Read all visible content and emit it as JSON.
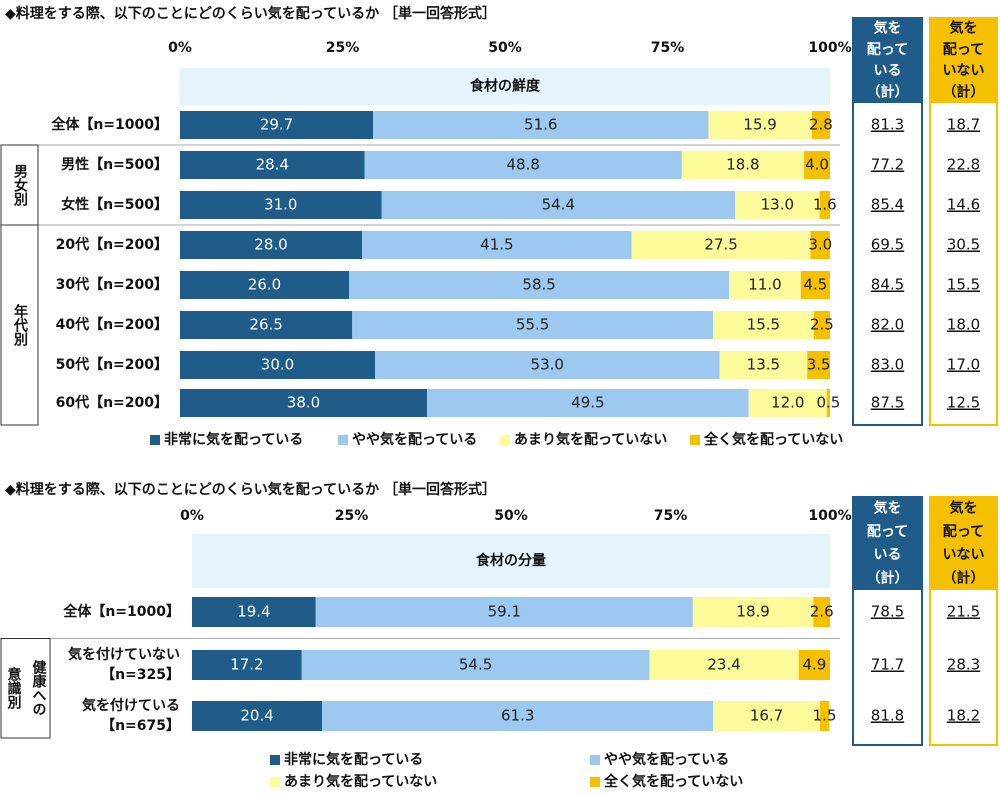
{
  "chart_data": [
    {
      "type": "stacked-bar",
      "title": "◆料理をする際、以下のことにどのくらい気を配っているか ［単一回答形式］",
      "subtitle": "食材の鮮度",
      "categories": [
        "全体【n=1000】",
        "男性【n=500】",
        "女性【n=500】",
        "20代【n=200】",
        "30代【n=200】",
        "40代【n=200】",
        "50代【n=200】",
        "60代【n=200】"
      ],
      "groups": [
        {
          "label": [
            "男女別"
          ],
          "rows": [
            1,
            2
          ]
        },
        {
          "label": [
            "年代別"
          ],
          "rows": [
            3,
            7
          ]
        }
      ],
      "xlim": [
        0,
        100
      ],
      "xticks": [
        {
          "value": 0,
          "label": "0%"
        },
        {
          "value": 25,
          "label": "25%"
        },
        {
          "value": 50,
          "label": "50%"
        },
        {
          "value": 75,
          "label": "75%"
        },
        {
          "value": 100,
          "label": "100%"
        }
      ],
      "series": [
        {
          "name": "非常に気を配っている",
          "color": "#1f5c8a",
          "values": [
            29.7,
            28.4,
            31.0,
            28.0,
            26.0,
            26.5,
            30.0,
            38.0
          ],
          "value_labels": [
            "29.7",
            "28.4",
            "31.0",
            "28.0",
            "26.0",
            "26.5",
            "30.0",
            "38.0"
          ]
        },
        {
          "name": "やや気を配っている",
          "color": "#9dc8ef",
          "values": [
            51.6,
            48.8,
            54.4,
            41.5,
            58.5,
            55.5,
            53.0,
            49.5
          ],
          "value_labels": [
            "51.6",
            "48.8",
            "54.4",
            "41.5",
            "58.5",
            "55.5",
            "53.0",
            "49.5"
          ]
        },
        {
          "name": "あまり気を配っていない",
          "color": "#fdfa9a",
          "values": [
            15.9,
            18.8,
            13.0,
            27.5,
            11.0,
            15.5,
            13.5,
            12.0
          ],
          "value_labels": [
            "15.9",
            "18.8",
            "13.0",
            "27.5",
            "11.0",
            "15.5",
            "13.5",
            "12.0"
          ]
        },
        {
          "name": "全く気を配っていない",
          "color": "#f5c000",
          "values": [
            2.8,
            4.0,
            1.6,
            3.0,
            4.5,
            2.5,
            3.5,
            0.5
          ],
          "value_labels": [
            "2.8",
            "4.0",
            "1.6",
            "3.0",
            "4.5",
            "2.5",
            "3.5",
            "0.5"
          ]
        }
      ],
      "summaries": [
        {
          "header": [
            "気を",
            "配って",
            "いる",
            "（計）"
          ],
          "color": "#1f5c8a",
          "values": [
            "81.3",
            "77.2",
            "85.4",
            "69.5",
            "84.5",
            "82.0",
            "83.0",
            "87.5"
          ]
        },
        {
          "header": [
            "気を",
            "配って",
            "いない",
            "（計）"
          ],
          "color": "#f5c000",
          "values": [
            "18.7",
            "22.8",
            "14.6",
            "30.5",
            "15.5",
            "18.0",
            "17.0",
            "12.5"
          ]
        }
      ]
    },
    {
      "type": "stacked-bar",
      "title": "◆料理をする際、以下のことにどのくらい気を配っているか ［単一回答形式］",
      "subtitle": "食材の分量",
      "categories": [
        [
          "全体【n=1000】"
        ],
        [
          "気を付けていない",
          "【n=325】"
        ],
        [
          "気を付けている",
          "【n=675】"
        ]
      ],
      "groups": [
        {
          "label": [
            "健康への",
            "意識別"
          ],
          "rows": [
            1,
            2
          ]
        }
      ],
      "xlim": [
        0,
        100
      ],
      "xticks": [
        {
          "value": 0,
          "label": "0%"
        },
        {
          "value": 25,
          "label": "25%"
        },
        {
          "value": 50,
          "label": "50%"
        },
        {
          "value": 75,
          "label": "75%"
        },
        {
          "value": 100,
          "label": "100%"
        }
      ],
      "series": [
        {
          "name": "非常に気を配っている",
          "color": "#1f5c8a",
          "values": [
            19.4,
            17.2,
            20.4
          ]
        },
        {
          "name": "やや気を配っている",
          "color": "#9dc8ef",
          "values": [
            59.1,
            54.5,
            61.3
          ]
        },
        {
          "name": "あまり気を配っていない",
          "color": "#fdfa9a",
          "values": [
            18.9,
            23.4,
            16.7
          ]
        },
        {
          "name": "全く気を配っていない",
          "color": "#f5c000",
          "values": [
            2.6,
            4.9,
            1.5
          ]
        }
      ],
      "summaries": [
        {
          "header": [
            "気を",
            "配って",
            "いる",
            "（計）"
          ],
          "color": "#1f5c8a",
          "values": [
            "78.5",
            "71.7",
            "81.8"
          ]
        },
        {
          "header": [
            "気を",
            "配って",
            "いない",
            "（計）"
          ],
          "color": "#f5c000",
          "values": [
            "21.5",
            "28.3",
            "18.2"
          ]
        }
      ]
    }
  ]
}
